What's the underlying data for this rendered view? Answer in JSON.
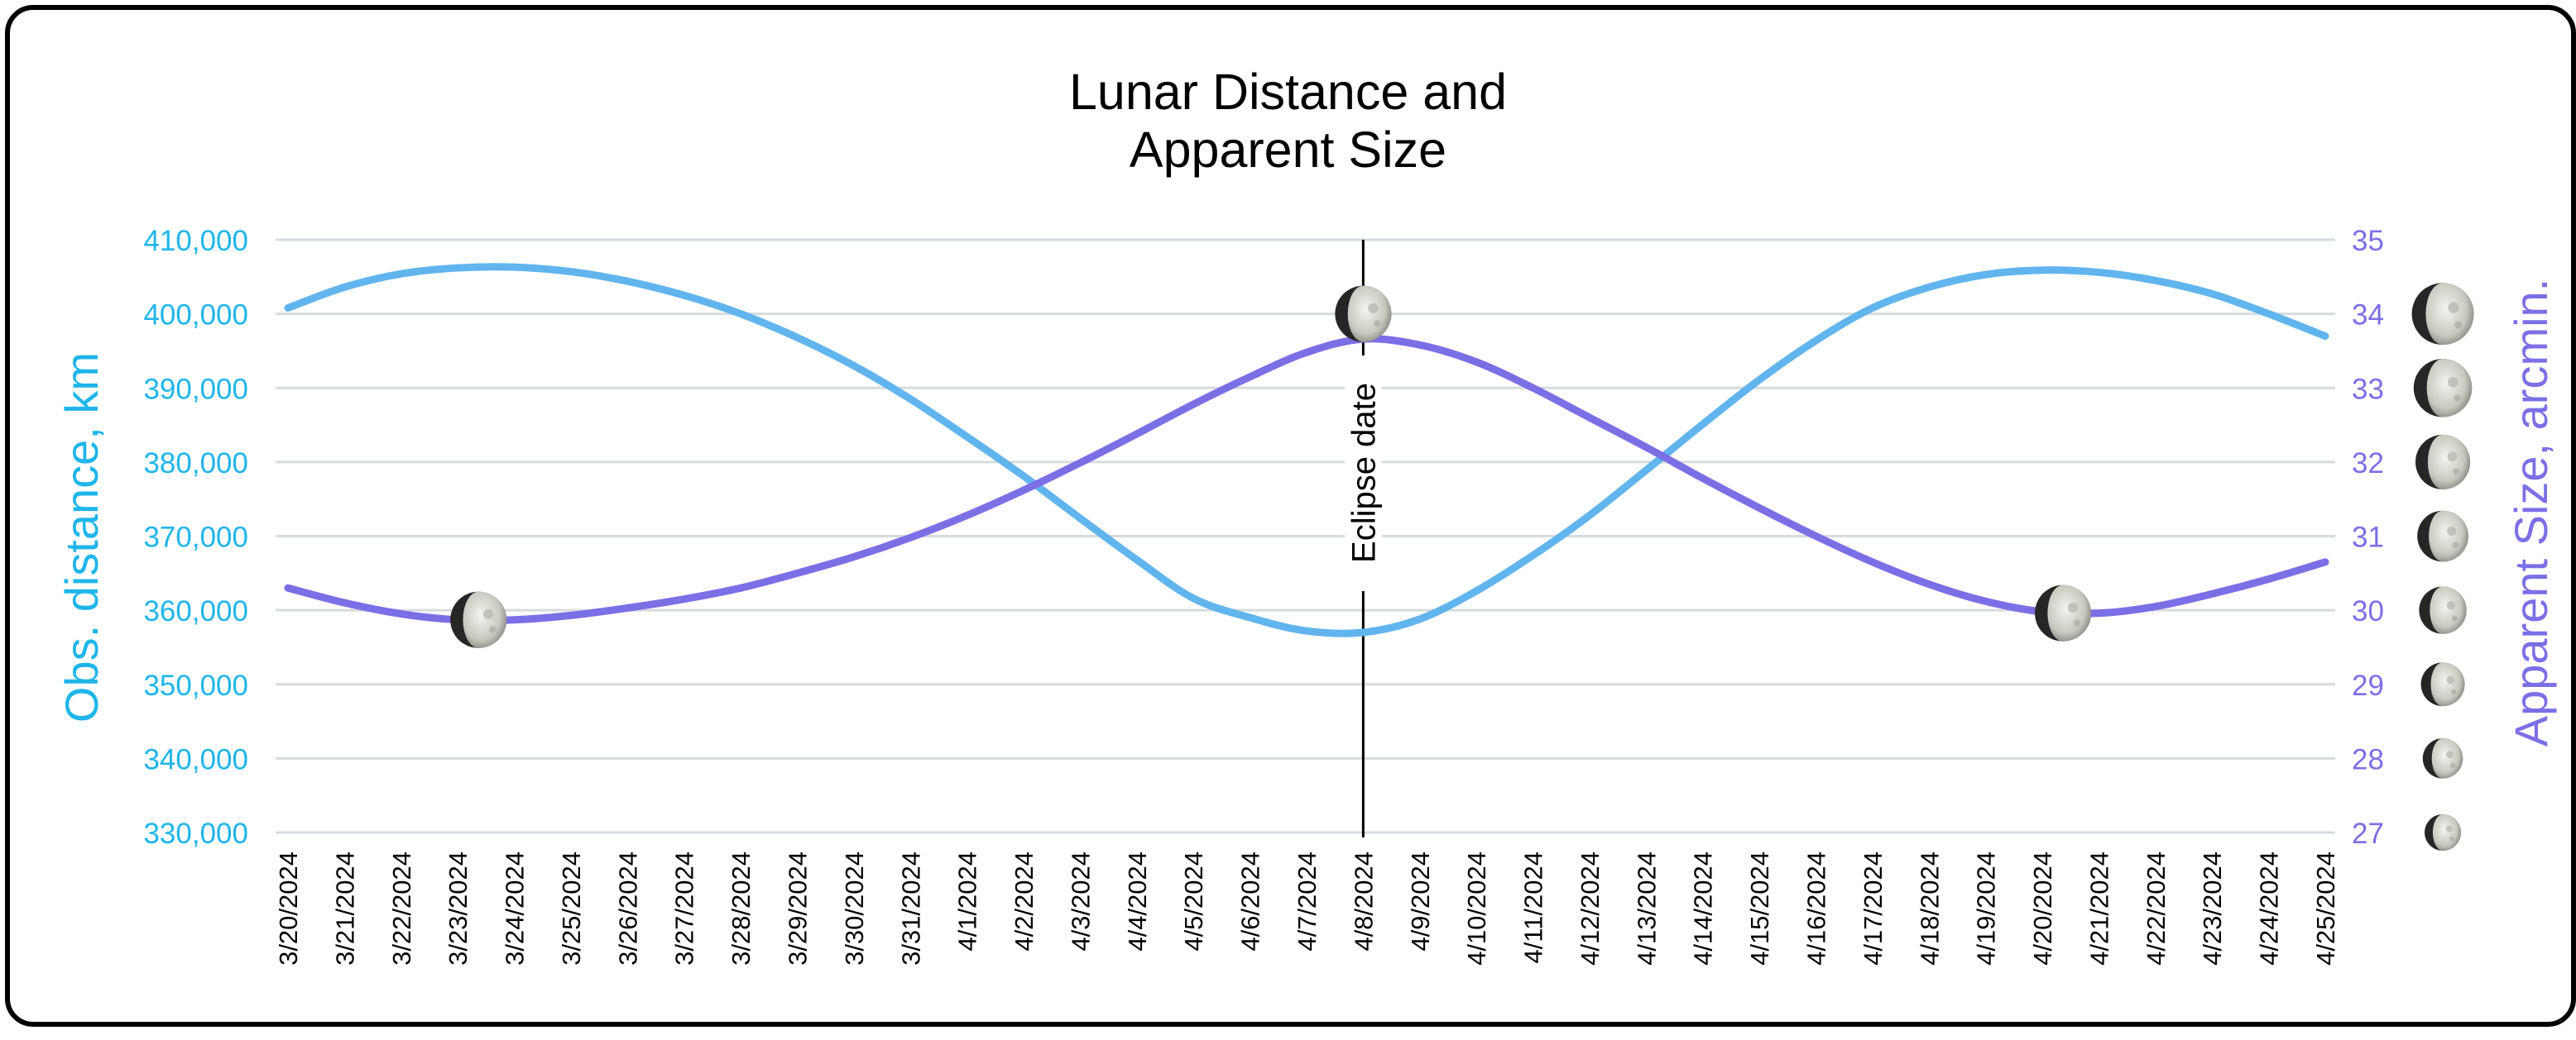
{
  "chart_data": {
    "type": "line",
    "title": [
      "Lunar Distance and",
      "Apparent Size"
    ],
    "x": [
      "3/20/2024",
      "3/21/2024",
      "3/22/2024",
      "3/23/2024",
      "3/24/2024",
      "3/25/2024",
      "3/26/2024",
      "3/27/2024",
      "3/28/2024",
      "3/29/2024",
      "3/30/2024",
      "3/31/2024",
      "4/1/2024",
      "4/2/2024",
      "4/3/2024",
      "4/4/2024",
      "4/5/2024",
      "4/6/2024",
      "4/7/2024",
      "4/8/2024",
      "4/9/2024",
      "4/10/2024",
      "4/11/2024",
      "4/12/2024",
      "4/13/2024",
      "4/14/2024",
      "4/15/2024",
      "4/16/2024",
      "4/17/2024",
      "4/18/2024",
      "4/19/2024",
      "4/20/2024",
      "4/21/2024",
      "4/22/2024",
      "4/23/2024",
      "4/24/2024",
      "4/25/2024"
    ],
    "left_axis": {
      "label": "Obs. distance, km",
      "ylim": [
        330000,
        410000
      ],
      "ticks": [
        "330,000",
        "340,000",
        "350,000",
        "360,000",
        "370,000",
        "380,000",
        "390,000",
        "400,000",
        "410,000"
      ],
      "color": "#1fb5ea"
    },
    "right_axis": {
      "label": "Apparent Size, arcmin.",
      "ylim": [
        27,
        35
      ],
      "ticks": [
        "27",
        "28",
        "29",
        "30",
        "31",
        "32",
        "33",
        "34",
        "35"
      ],
      "color": "#7b6fe6"
    },
    "series": [
      {
        "axis": "left",
        "color": "#62b4ee",
        "values": [
          400800,
          403600,
          405400,
          406200,
          406300,
          405700,
          404400,
          402500,
          400000,
          396800,
          393000,
          388500,
          383400,
          378100,
          372400,
          366800,
          361600,
          359000,
          357200,
          357000,
          358800,
          362600,
          367400,
          372800,
          378900,
          385100,
          391100,
          396400,
          400800,
          403600,
          405300,
          405900,
          405600,
          404500,
          402700,
          400000,
          397000
        ]
      },
      {
        "axis": "right",
        "color": "#7b6fe6",
        "values": [
          30.3,
          30.1,
          29.95,
          29.87,
          29.87,
          29.93,
          30.03,
          30.15,
          30.3,
          30.5,
          30.72,
          30.98,
          31.28,
          31.62,
          31.99,
          32.38,
          32.78,
          33.15,
          33.48,
          33.66,
          33.58,
          33.35,
          33.0,
          32.6,
          32.2,
          31.78,
          31.38,
          31.0,
          30.65,
          30.35,
          30.12,
          29.98,
          29.96,
          30.05,
          30.22,
          30.42,
          30.65
        ]
      }
    ],
    "annotation": {
      "x": "4/8/2024",
      "label": "Eclipse date"
    },
    "moon_markers": [
      {
        "x": "3/23/2024",
        "axis": "right",
        "value": 29.87
      },
      {
        "x": "4/8/2024",
        "axis": "right",
        "value": 34.0
      },
      {
        "x": "4/20/2024",
        "axis": "right",
        "value": 29.96
      }
    ],
    "grid": true,
    "gridline_color": "#d6dcdd",
    "moon_colors": {
      "light": "#dcdcd6",
      "dark": "#262626"
    }
  }
}
